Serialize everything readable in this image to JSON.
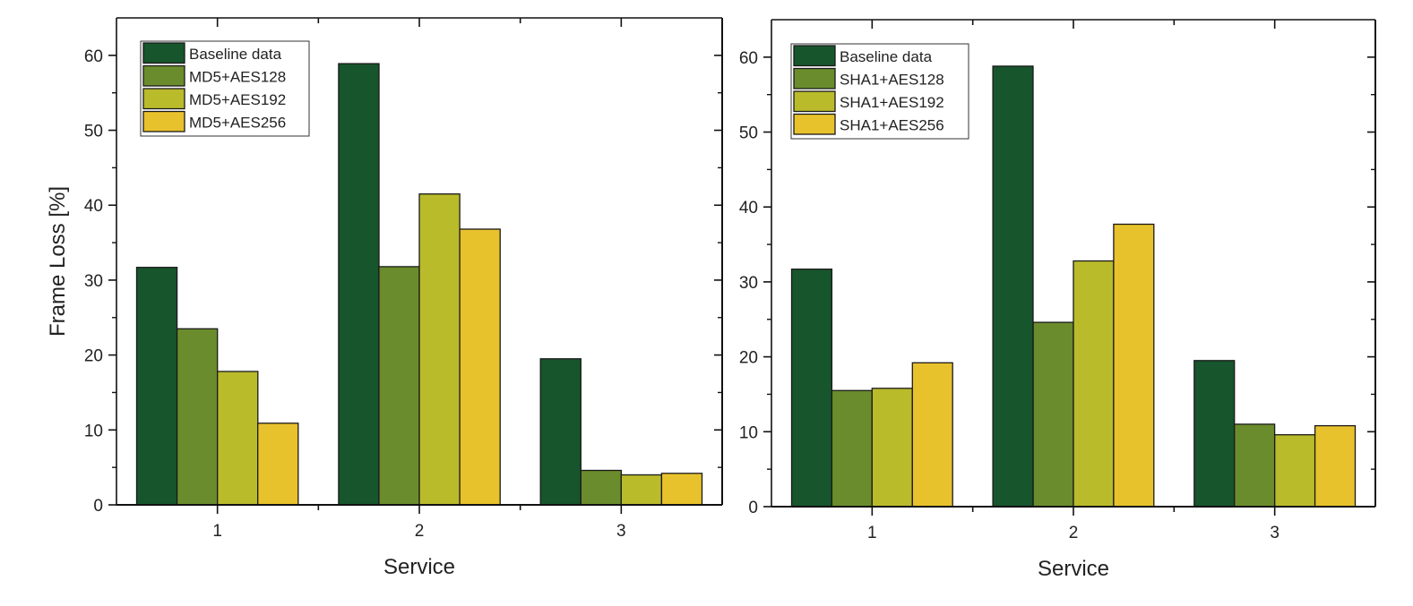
{
  "chart_data": [
    {
      "type": "bar",
      "title": "",
      "xlabel": "Service",
      "ylabel": "Frame Loss [%]",
      "categories": [
        "1",
        "2",
        "3"
      ],
      "ylim": [
        0,
        65
      ],
      "yticks": [
        "0",
        "10",
        "20",
        "30",
        "40",
        "50",
        "60"
      ],
      "legend_position": "top-left",
      "series": [
        {
          "name": "Baseline data",
          "color": "#17552d",
          "values": [
            31.7,
            58.9,
            19.5
          ]
        },
        {
          "name": "MD5+AES128",
          "color": "#6a8c2c",
          "values": [
            23.5,
            31.8,
            4.6
          ]
        },
        {
          "name": "MD5+AES192",
          "color": "#b9bb2b",
          "values": [
            17.8,
            41.5,
            4.0
          ]
        },
        {
          "name": "MD5+AES256",
          "color": "#e8c22c",
          "values": [
            10.9,
            36.8,
            4.2
          ]
        }
      ]
    },
    {
      "type": "bar",
      "title": "",
      "xlabel": "Service",
      "ylabel": "",
      "categories": [
        "1",
        "2",
        "3"
      ],
      "ylim": [
        0,
        65
      ],
      "yticks": [
        "0",
        "10",
        "20",
        "30",
        "40",
        "50",
        "60"
      ],
      "legend_position": "top-left",
      "series": [
        {
          "name": "Baseline data",
          "color": "#17552d",
          "values": [
            31.7,
            58.8,
            19.5
          ]
        },
        {
          "name": "SHA1+AES128",
          "color": "#6a8c2c",
          "values": [
            15.5,
            24.6,
            11.0
          ]
        },
        {
          "name": "SHA1+AES192",
          "color": "#b9bb2b",
          "values": [
            15.8,
            32.8,
            9.6
          ]
        },
        {
          "name": "SHA1+AES256",
          "color": "#e8c22c",
          "values": [
            19.2,
            37.7,
            10.8
          ]
        }
      ]
    }
  ]
}
